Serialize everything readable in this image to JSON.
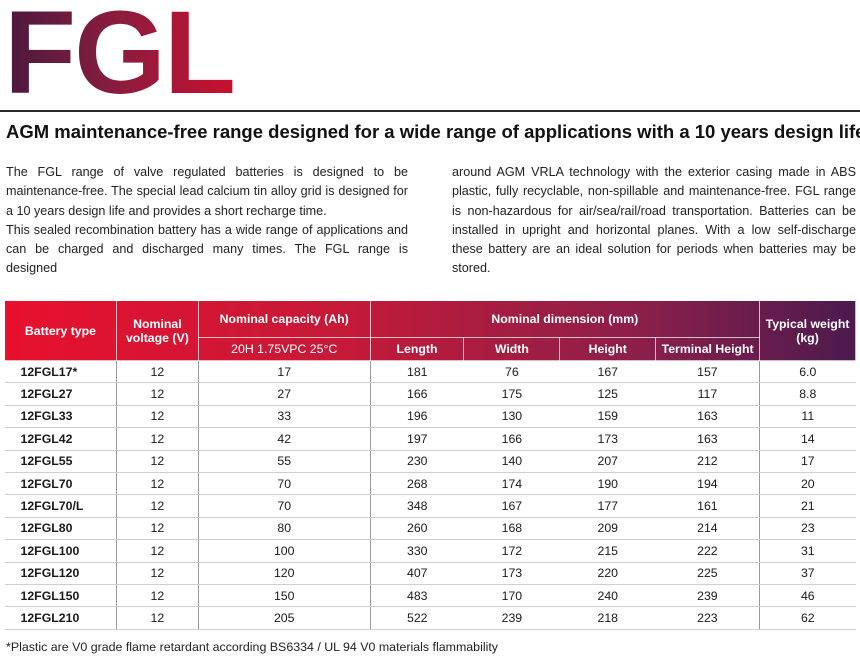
{
  "brand": {
    "logo_text": "FGL"
  },
  "headline": "AGM maintenance-free range designed for a wide range of applications with a 10 years design life",
  "intro": {
    "left_p1": "The FGL range of valve regulated batteries is designed to be maintenance-free. The special lead calcium tin alloy grid is designed for a 10 years design life and provides a short recharge time.",
    "left_p2": "This sealed recombination battery has a wide range of applications and can be charged and discharged many times. The FGL range is designed",
    "right": "around AGM VRLA technology with the exterior casing made in ABS plastic, fully recyclable, non-spillable and maintenance-free. FGL range is non-hazardous for air/sea/rail/road transportation. Batteries can be installed in upright and horizontal planes. With a low self-discharge these battery are an ideal solution for periods when batteries may be stored."
  },
  "table": {
    "headers": {
      "battery_type": "Battery type",
      "nominal_voltage": "Nominal voltage (V)",
      "nominal_capacity": "Nominal capacity (Ah)",
      "capacity_condition": "20H 1.75VPC 25°C",
      "nominal_dimension": "Nominal dimension (mm)",
      "length": "Length",
      "width": "Width",
      "height": "Height",
      "terminal_height": "Terminal Height",
      "typical_weight": "Typical weight (kg)"
    },
    "rows": [
      {
        "type": "12FGL17*",
        "voltage": "12",
        "capacity": "17",
        "length": "181",
        "width": "76",
        "height": "167",
        "terminal_height": "157",
        "weight": "6.0"
      },
      {
        "type": "12FGL27",
        "voltage": "12",
        "capacity": "27",
        "length": "166",
        "width": "175",
        "height": "125",
        "terminal_height": "117",
        "weight": "8.8"
      },
      {
        "type": "12FGL33",
        "voltage": "12",
        "capacity": "33",
        "length": "196",
        "width": "130",
        "height": "159",
        "terminal_height": "163",
        "weight": "11"
      },
      {
        "type": "12FGL42",
        "voltage": "12",
        "capacity": "42",
        "length": "197",
        "width": "166",
        "height": "173",
        "terminal_height": "163",
        "weight": "14"
      },
      {
        "type": "12FGL55",
        "voltage": "12",
        "capacity": "55",
        "length": "230",
        "width": "140",
        "height": "207",
        "terminal_height": "212",
        "weight": "17"
      },
      {
        "type": "12FGL70",
        "voltage": "12",
        "capacity": "70",
        "length": "268",
        "width": "174",
        "height": "190",
        "terminal_height": "194",
        "weight": "20"
      },
      {
        "type": "12FGL70/L",
        "voltage": "12",
        "capacity": "70",
        "length": "348",
        "width": "167",
        "height": "177",
        "terminal_height": "161",
        "weight": "21"
      },
      {
        "type": "12FGL80",
        "voltage": "12",
        "capacity": "80",
        "length": "260",
        "width": "168",
        "height": "209",
        "terminal_height": "214",
        "weight": "23"
      },
      {
        "type": "12FGL100",
        "voltage": "12",
        "capacity": "100",
        "length": "330",
        "width": "172",
        "height": "215",
        "terminal_height": "222",
        "weight": "31"
      },
      {
        "type": "12FGL120",
        "voltage": "12",
        "capacity": "120",
        "length": "407",
        "width": "173",
        "height": "220",
        "terminal_height": "225",
        "weight": "37"
      },
      {
        "type": "12FGL150",
        "voltage": "12",
        "capacity": "150",
        "length": "483",
        "width": "170",
        "height": "240",
        "terminal_height": "239",
        "weight": "46"
      },
      {
        "type": "12FGL210",
        "voltage": "12",
        "capacity": "205",
        "length": "522",
        "width": "239",
        "height": "218",
        "terminal_height": "223",
        "weight": "62"
      }
    ]
  },
  "footnote": "*Plastic are V0 grade flame retardant according BS6334 / UL 94 V0 materials flammability",
  "colors": {
    "brand_red": "#e8102e",
    "brand_purple": "#4a1a4e"
  }
}
